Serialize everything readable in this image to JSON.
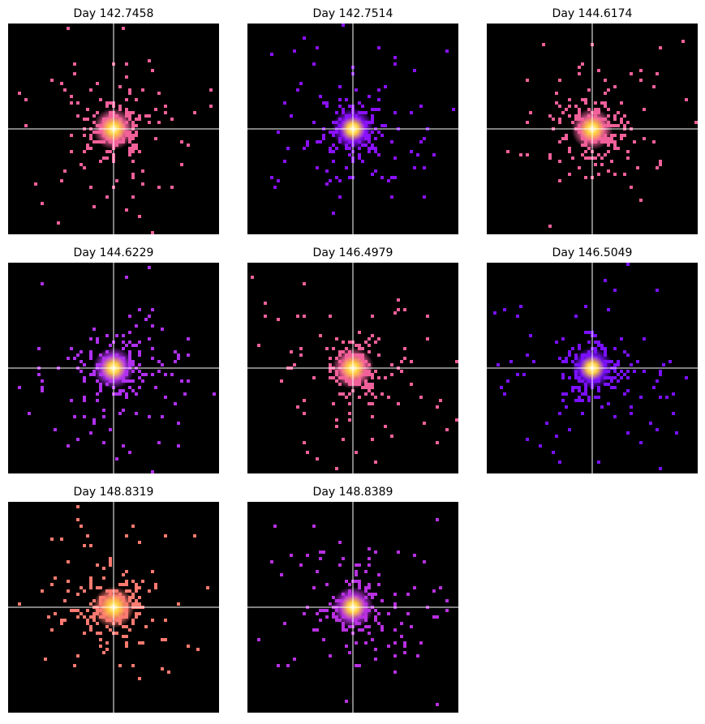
{
  "panels": [
    {
      "title": "Day 142.7458",
      "color": "#f2609a"
    },
    {
      "title": "Day 142.7514",
      "color": "#8a10ff"
    },
    {
      "title": "Day 144.6174",
      "color": "#f2609a"
    },
    {
      "title": "Day 144.6229",
      "color": "#b030f0"
    },
    {
      "title": "Day 146.4979",
      "color": "#f2609a"
    },
    {
      "title": "Day 146.5049",
      "color": "#7a10ff"
    },
    {
      "title": "Day 148.8319",
      "color": "#ff7a70"
    },
    {
      "title": "Day 148.8389",
      "color": "#b830e0"
    }
  ]
}
